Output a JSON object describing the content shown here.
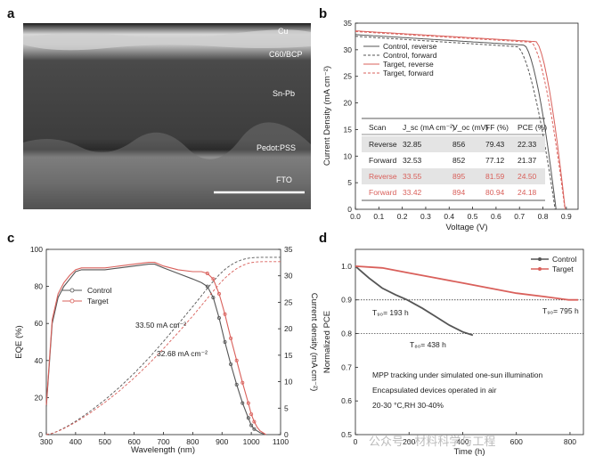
{
  "panel_letters": [
    "a",
    "b",
    "c",
    "d"
  ],
  "panel_a": {
    "layers": [
      "Cu",
      "C60/BCP",
      "Sn-Pb",
      "Pedot:PSS",
      "FTO"
    ]
  },
  "watermark": "公众号 · 材料科学与工程",
  "colors": {
    "control": "#555555",
    "target": "#d9605b",
    "sem_dark": "#3a3a3a"
  },
  "chart_data": [
    {
      "panel": "b",
      "type": "line",
      "xlabel": "Voltage (V)",
      "ylabel": "Current Density (mA cm⁻²)",
      "xlim": [
        0.0,
        0.95
      ],
      "ylim": [
        0,
        35
      ],
      "xticks": [
        "0.0",
        "0.1",
        "0.2",
        "0.3",
        "0.4",
        "0.5",
        "0.6",
        "0.7",
        "0.8",
        "0.9"
      ],
      "yticks": [
        "0",
        "5",
        "10",
        "15",
        "20",
        "25",
        "30",
        "35"
      ],
      "legend_position": "top-left",
      "series": [
        {
          "name": "Control, reverse",
          "style": "solid",
          "color": "#555555",
          "jsc": 32.85,
          "voc": 0.856,
          "v_knee": 0.72
        },
        {
          "name": "Control, forward",
          "style": "dashed",
          "color": "#555555",
          "jsc": 32.53,
          "voc": 0.852,
          "v_knee": 0.69
        },
        {
          "name": "Target, reverse",
          "style": "solid",
          "color": "#d9605b",
          "jsc": 33.55,
          "voc": 0.895,
          "v_knee": 0.77
        },
        {
          "name": "Target, forward",
          "style": "dashed",
          "color": "#d9605b",
          "jsc": 33.42,
          "voc": 0.894,
          "v_knee": 0.75
        }
      ],
      "table": {
        "headers": [
          "Scan",
          "J_sc (mA cm⁻²)",
          "V_oc (mV)",
          "FF (%)",
          "PCE (%)"
        ],
        "rows": [
          {
            "cells": [
              "Reverse",
              "32.85",
              "856",
              "79.43",
              "22.33"
            ],
            "group": "control"
          },
          {
            "cells": [
              "Forward",
              "32.53",
              "852",
              "77.12",
              "21.37"
            ],
            "group": "control"
          },
          {
            "cells": [
              "Reverse",
              "33.55",
              "895",
              "81.59",
              "24.50"
            ],
            "group": "target"
          },
          {
            "cells": [
              "Forward",
              "33.42",
              "894",
              "80.94",
              "24.18"
            ],
            "group": "target"
          }
        ]
      }
    },
    {
      "panel": "c",
      "type": "line",
      "xlabel": "Wavelength (nm)",
      "ylabel": "EQE (%)",
      "ylabel_right": "Current density (mA cm⁻²)",
      "xlim": [
        300,
        1100
      ],
      "ylim": [
        0,
        100
      ],
      "ylim_right": [
        0,
        35
      ],
      "xticks": [
        "300",
        "400",
        "500",
        "600",
        "700",
        "800",
        "900",
        "1000",
        "1100"
      ],
      "yticks": [
        "0",
        "20",
        "40",
        "60",
        "80",
        "100"
      ],
      "yticks_right": [
        "0",
        "5",
        "10",
        "15",
        "20",
        "25",
        "30",
        "35"
      ],
      "legend_position": "middle-left",
      "series": [
        {
          "name": "Control",
          "color": "#555555",
          "x": [
            300,
            320,
            340,
            360,
            380,
            400,
            420,
            450,
            500,
            550,
            600,
            650,
            670,
            700,
            750,
            800,
            830,
            850,
            870,
            890,
            910,
            930,
            950,
            970,
            990,
            1000,
            1010,
            1020,
            1030,
            1040,
            1050
          ],
          "y": [
            15,
            60,
            74,
            80,
            84,
            88,
            89,
            89,
            89,
            90,
            91,
            92,
            92,
            90,
            87,
            84,
            82,
            80,
            74,
            63,
            50,
            38,
            27,
            17,
            9,
            5,
            3,
            2,
            1,
            0.5,
            0
          ]
        },
        {
          "name": "Target",
          "color": "#d9605b",
          "x": [
            300,
            320,
            340,
            360,
            380,
            400,
            420,
            450,
            500,
            550,
            600,
            650,
            670,
            700,
            750,
            800,
            830,
            850,
            870,
            890,
            910,
            930,
            950,
            970,
            990,
            1000,
            1010,
            1020,
            1030,
            1040,
            1050
          ],
          "y": [
            16,
            62,
            76,
            82,
            86,
            89,
            90,
            90,
            90,
            91,
            92,
            93,
            93,
            91,
            89,
            88,
            88,
            87,
            84,
            76,
            65,
            52,
            40,
            28,
            17,
            11,
            7,
            4,
            2,
            1,
            0
          ]
        }
      ],
      "integrated": [
        {
          "label": "33.50 mA cm⁻²",
          "color": "#d9605b",
          "final": 33.5
        },
        {
          "label": "32.68 mA cm⁻²",
          "color": "#555555",
          "final": 32.68
        }
      ]
    },
    {
      "panel": "d",
      "type": "line",
      "xlabel": "Time (h)",
      "ylabel": "Normalized PCE",
      "xlim": [
        0,
        850
      ],
      "ylim": [
        0.5,
        1.05
      ],
      "xticks": [
        "0",
        "200",
        "400",
        "600",
        "800"
      ],
      "yticks": [
        "0.5",
        "0.6",
        "0.7",
        "0.8",
        "0.9",
        "1.0"
      ],
      "legend_position": "top-right",
      "series": [
        {
          "name": "Control",
          "color": "#555555",
          "x": [
            0,
            50,
            100,
            150,
            193,
            250,
            300,
            350,
            400,
            438
          ],
          "y": [
            1.0,
            0.965,
            0.935,
            0.915,
            0.9,
            0.875,
            0.85,
            0.825,
            0.805,
            0.795
          ]
        },
        {
          "name": "Target",
          "color": "#d9605b",
          "x": [
            0,
            100,
            200,
            300,
            400,
            500,
            600,
            700,
            795,
            830
          ],
          "y": [
            1.0,
            0.995,
            0.98,
            0.965,
            0.95,
            0.935,
            0.92,
            0.91,
            0.9,
            0.9
          ]
        }
      ],
      "reference_lines": [
        0.9,
        0.8
      ],
      "annotations": [
        {
          "label": "T₉₀= 193 h",
          "color": "#555555"
        },
        {
          "label": "T₉₀= 795 h",
          "color": "#d9605b"
        },
        {
          "label": "T₈₀= 438 h",
          "color": "#555555"
        }
      ],
      "notes": [
        "MPP tracking under simulated one-sun illumination",
        "Encapsulated devices operated in air",
        "20-30 °C,RH 30-40%"
      ]
    }
  ]
}
